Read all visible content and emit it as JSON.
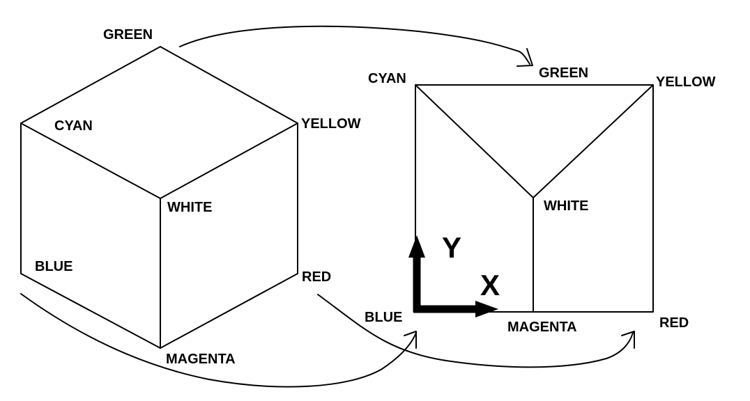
{
  "cube_view": {
    "labels": {
      "green": "GREEN",
      "cyan": "CYAN",
      "yellow": "YELLOW",
      "white": "WHITE",
      "blue": "BLUE",
      "red": "RED",
      "magenta": "MAGENTA"
    }
  },
  "projection_view": {
    "labels": {
      "cyan": "CYAN",
      "green": "GREEN",
      "yellow": "YELLOW",
      "white": "WHITE",
      "blue": "BLUE",
      "magenta": "MAGENTA",
      "red": "RED"
    },
    "axes": {
      "x_label": "X",
      "y_label": "Y"
    }
  },
  "colors": {
    "line": "#000000",
    "background": "#ffffff"
  }
}
